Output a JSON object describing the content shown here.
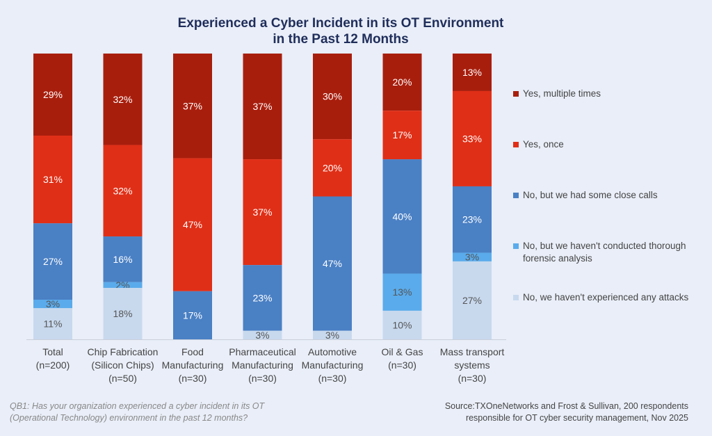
{
  "chart_data": {
    "type": "bar",
    "stacked": true,
    "title_lines": [
      "Experienced a Cyber Incident in its OT Environment",
      "in the Past 12 Months"
    ],
    "categories": [
      [
        "Total",
        "(n=200)"
      ],
      [
        "Chip Fabrication",
        "(Silicon Chips)",
        "(n=50)"
      ],
      [
        "Food",
        "Manufacturing",
        "(n=30)"
      ],
      [
        "Pharmaceutical",
        "Manufacturing",
        "(n=30)"
      ],
      [
        "Automotive",
        "Manufacturing",
        "(n=30)"
      ],
      [
        "Oil & Gas",
        "(n=30)"
      ],
      [
        "Mass transport",
        "systems",
        "(n=30)"
      ]
    ],
    "series": [
      {
        "name": "Yes, multiple times",
        "color": "#a81e0d",
        "label_color": "#ffffff",
        "values": [
          29,
          32,
          37,
          37,
          30,
          20,
          13
        ]
      },
      {
        "name": "Yes, once",
        "color": "#e02f17",
        "label_color": "#ffffff",
        "values": [
          31,
          32,
          47,
          37,
          20,
          17,
          33
        ]
      },
      {
        "name": "No, but we had some close calls",
        "color": "#4a80c4",
        "label_color": "#ffffff",
        "values": [
          27,
          16,
          17,
          23,
          47,
          40,
          23
        ]
      },
      {
        "name": "No, but we haven't conducted thorough forensic analysis",
        "color": "#5aabeb",
        "label_color": "#555555",
        "values": [
          3,
          2,
          0,
          0,
          0,
          13,
          3
        ]
      },
      {
        "name": "No, we haven't experienced any attacks",
        "color": "#c8d9ee",
        "label_color": "#555555",
        "values": [
          11,
          18,
          0,
          3,
          3,
          10,
          27
        ]
      }
    ],
    "value_suffix": "%",
    "legend_position": "right",
    "grid": false
  },
  "legend_lines": [
    [
      "Yes, multiple times"
    ],
    [
      "Yes, once"
    ],
    [
      "No, but we had some close calls"
    ],
    [
      "No, but we haven't conducted thorough",
      "forensic analysis"
    ],
    [
      "No, we haven't experienced any attacks"
    ]
  ],
  "footnote": {
    "question": [
      "QB1: Has your organization experienced a cyber incident in its OT",
      "(Operational Technology) environment in the past 12 months?"
    ],
    "source": [
      "Source:TXOneNetworks and Frost & Sullivan, 200 respondents",
      "responsible for OT cyber security management, Nov 2025"
    ]
  }
}
